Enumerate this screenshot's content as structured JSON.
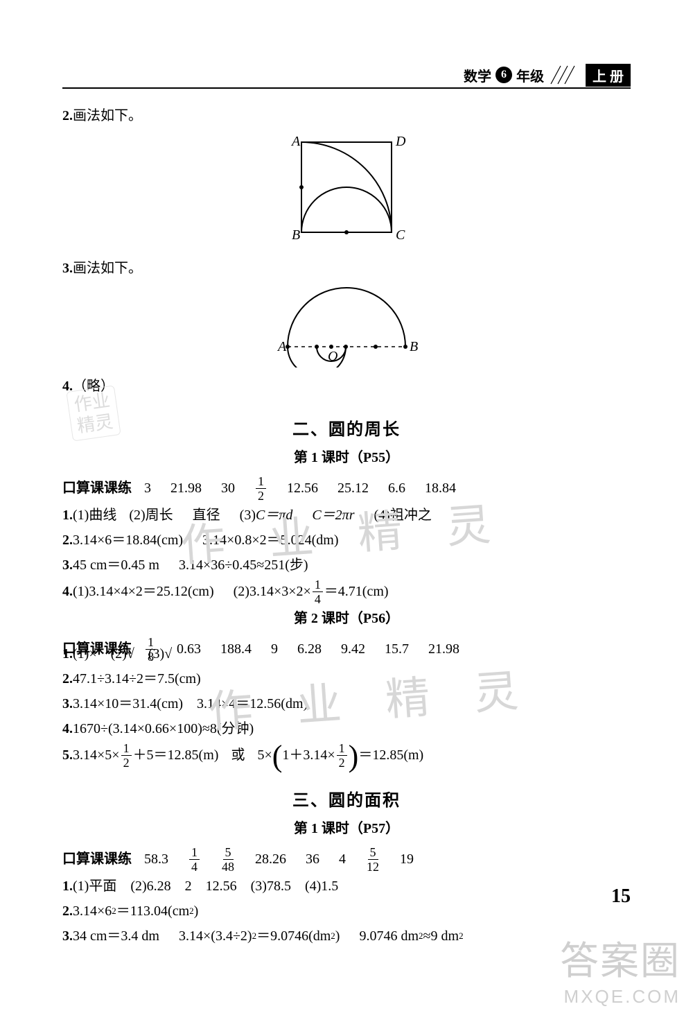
{
  "header": {
    "subject": "数学",
    "grade_num": "6",
    "grade_suffix": "年级",
    "volume": "上 册"
  },
  "q2_label": "2.",
  "q2_text": "画法如下。",
  "fig1": {
    "A": "A",
    "B": "B",
    "C": "C",
    "D": "D"
  },
  "q3_label": "3.",
  "q3_text": "画法如下。",
  "fig2": {
    "A": "A",
    "B": "B",
    "O": "O"
  },
  "q4_label": "4.",
  "q4_text": "（略）",
  "sec2_title": "二、圆的周长",
  "sec2_l1_title": "第 1 课时（P55）",
  "sec2_l1_oral_label": "口算课课练",
  "sec2_l1_oral": [
    "3",
    "21.98",
    "30",
    {
      "n": "1",
      "d": "2"
    },
    "12.56",
    "25.12",
    "6.6",
    "18.84"
  ],
  "sec2_l1_q1_a": "1.",
  "sec2_l1_q1_b": "(1)曲线",
  "sec2_l1_q1_c": "(2)周长",
  "sec2_l1_q1_d": "直径",
  "sec2_l1_q1_e": "(3)",
  "sec2_l1_q1_f": "C＝πd",
  "sec2_l1_q1_g": "C＝2πr",
  "sec2_l1_q1_h": "(4)祖冲之",
  "sec2_l1_q2_a": "2.",
  "sec2_l1_q2_b": "3.14×6＝18.84(cm)",
  "sec2_l1_q2_c": "3.14×0.8×2＝5.024(dm)",
  "sec2_l1_q3_a": "3.",
  "sec2_l1_q3_b": "45 cm＝0.45 m",
  "sec2_l1_q3_c": "3.14×36÷0.45≈251(步)",
  "sec2_l1_q4_a": "4.",
  "sec2_l1_q4_b1": "(1)3.14×4×2＝25.12(cm)",
  "sec2_l1_q4_b2a": "(2)3.14×3×2×",
  "sec2_l1_q4_b2f": {
    "n": "1",
    "d": "4"
  },
  "sec2_l1_q4_b2b": "＝4.71(cm)",
  "sec2_l2_title": "第 2 课时（P56）",
  "sec2_l2_oral_label": "口算课课练",
  "sec2_l2_oral": [
    {
      "n": "1",
      "d": "8"
    },
    "0.63",
    "188.4",
    "9",
    "6.28",
    "9.42",
    "15.7",
    "21.98"
  ],
  "sec2_l2_q1": "1.(1)×　(2)√　(3)√",
  "sec2_l2_q2": "2.47.1÷3.14÷2＝7.5(cm)",
  "sec2_l2_q3": "3.3.14×10＝31.4(cm)　3.14×4＝12.56(dm)",
  "sec2_l2_q4": "4.1670÷(3.14×0.66×100)≈8(分钟)",
  "sec2_l2_q5_a": "5.",
  "sec2_l2_q5_b": "3.14×5×",
  "sec2_l2_q5_f1": {
    "n": "1",
    "d": "2"
  },
  "sec2_l2_q5_c": "＋5＝12.85(m)",
  "sec2_l2_q5_d": "或",
  "sec2_l2_q5_e": "5×",
  "sec2_l2_q5_g": "1＋3.14×",
  "sec2_l2_q5_f2": {
    "n": "1",
    "d": "2"
  },
  "sec2_l2_q5_h": "＝12.85(m)",
  "sec3_title": "三、圆的面积",
  "sec3_l1_title": "第 1 课时（P57）",
  "sec3_l1_oral_label": "口算课课练",
  "sec3_l1_oral": [
    "58.3",
    {
      "n": "1",
      "d": "4"
    },
    {
      "n": "5",
      "d": "48"
    },
    "28.26",
    "36",
    "4",
    {
      "n": "5",
      "d": "12"
    },
    "19"
  ],
  "sec3_l1_q1": "1.(1)平面　(2)6.28　2　12.56　(3)78.5　(4)1.5",
  "sec3_l1_q2_a": "2.",
  "sec3_l1_q2_b": "3.14×6",
  "sec3_l1_q2_c": "＝113.04(cm",
  "sec3_l1_q2_d": ")",
  "sec3_l1_q3_a": "3.",
  "sec3_l1_q3_b": "34 cm＝3.4 dm",
  "sec3_l1_q3_c": "3.14×(3.4÷2)",
  "sec3_l1_q3_d": "＝9.0746(dm",
  "sec3_l1_q3_e": ")",
  "sec3_l1_q3_f": "9.0746 dm",
  "sec3_l1_q3_g": "≈9 dm",
  "page_number": "15",
  "footer": {
    "big": "答案圈",
    "url": "MXQE.COM"
  },
  "watermarks": {
    "w1": "作 业 精 灵",
    "w2": "作 业 精 灵",
    "stamp_l1": "作业",
    "stamp_l2": "精灵"
  }
}
